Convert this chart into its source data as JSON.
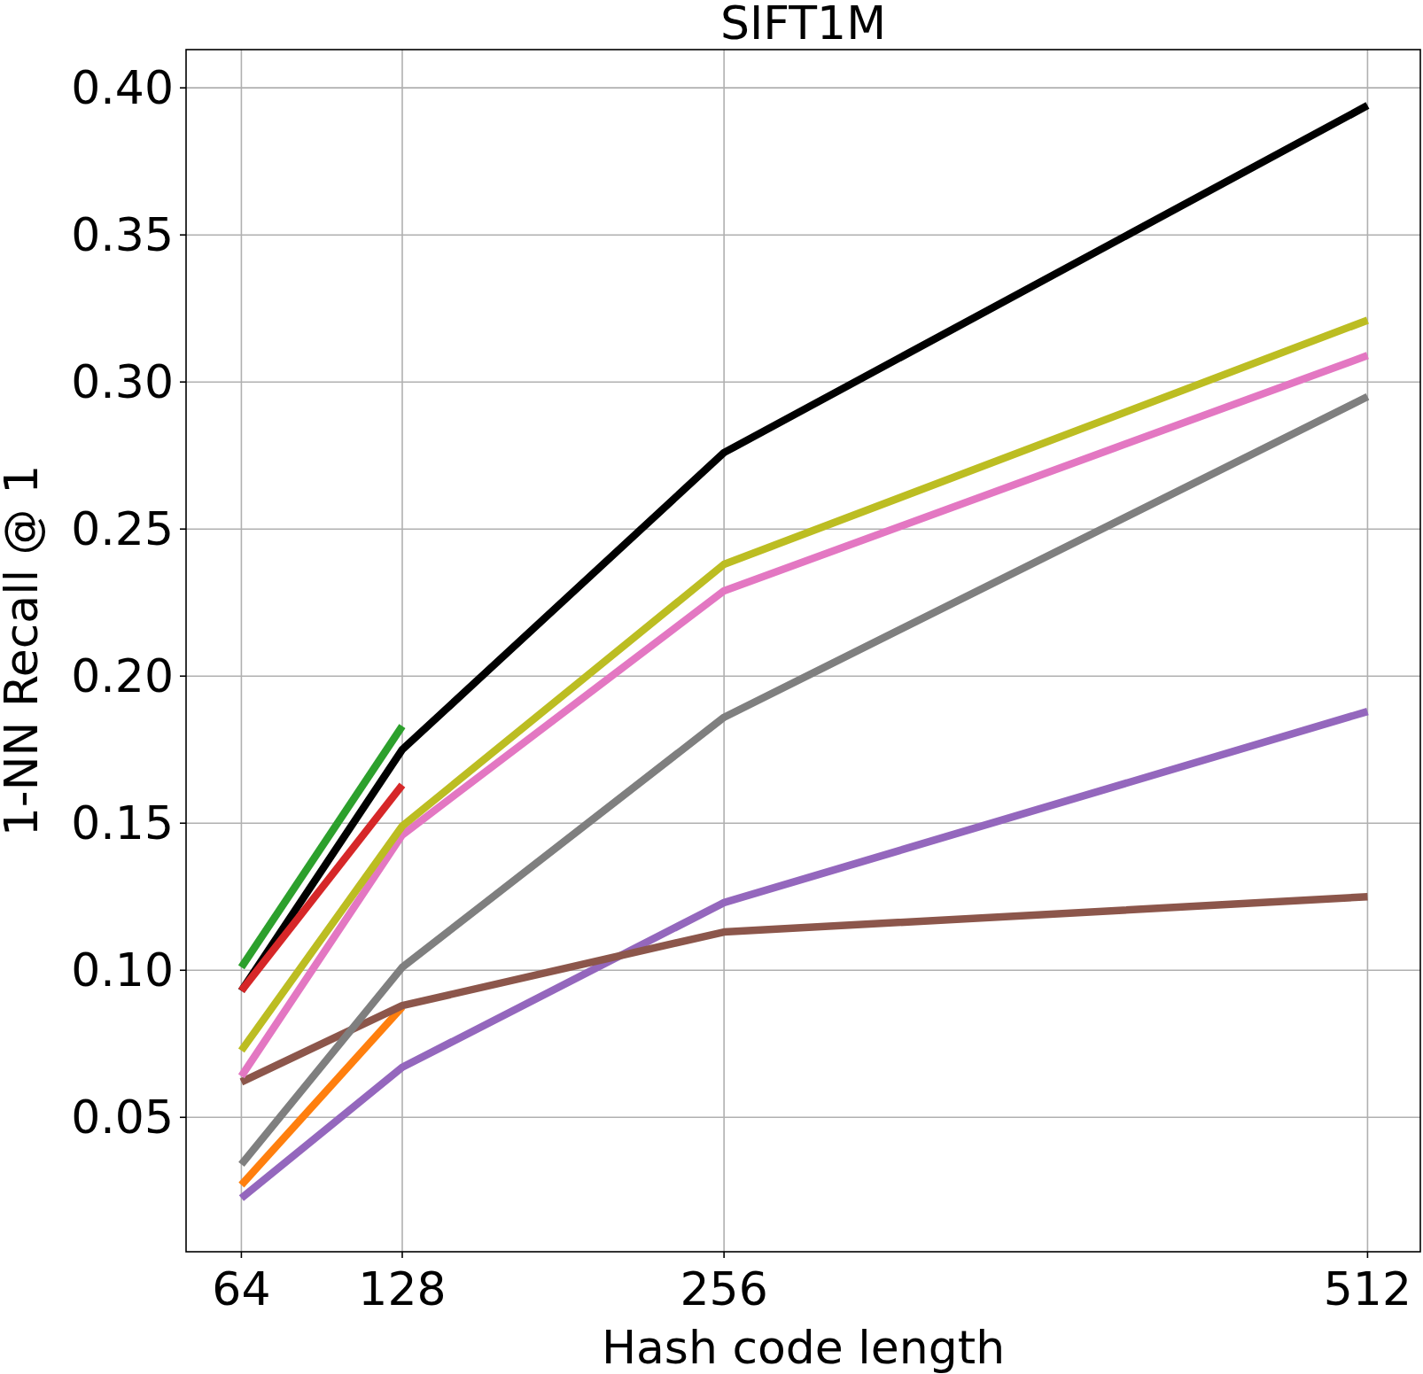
{
  "chart_data": {
    "type": "line",
    "title": "SIFT1M",
    "xlabel": "Hash code length",
    "ylabel": "1-NN Recall @ 1",
    "x": [
      64,
      128,
      256,
      512
    ],
    "xlim": [
      42,
      533
    ],
    "xticks": [
      64,
      128,
      256,
      512
    ],
    "ylim": [
      0.0043,
      0.413
    ],
    "yticks": [
      {
        "value": 0.05,
        "label": "0.05"
      },
      {
        "value": 0.1,
        "label": "0.10"
      },
      {
        "value": 0.15,
        "label": "0.15"
      },
      {
        "value": 0.2,
        "label": "0.20"
      },
      {
        "value": 0.25,
        "label": "0.25"
      },
      {
        "value": 0.3,
        "label": "0.30"
      },
      {
        "value": 0.35,
        "label": "0.35"
      },
      {
        "value": 0.4,
        "label": "0.40"
      }
    ],
    "grid": true,
    "marker": "none",
    "line_style": "solid",
    "series": [
      {
        "color": "#000000",
        "values": [
          0.093,
          0.175,
          0.276,
          0.394
        ]
      },
      {
        "color": "#2ca02c",
        "values": [
          0.101,
          0.183,
          null,
          null
        ]
      },
      {
        "color": "#d62728",
        "values": [
          0.093,
          0.163,
          null,
          null
        ]
      },
      {
        "color": "#ff7f0e",
        "values": [
          0.027,
          0.0875,
          null,
          null
        ]
      },
      {
        "color": "#9467bd",
        "values": [
          0.0225,
          0.067,
          0.123,
          0.188
        ]
      },
      {
        "color": "#8c564b",
        "values": [
          0.062,
          0.088,
          0.113,
          0.125
        ]
      },
      {
        "color": "#7f7f7f",
        "values": [
          0.034,
          0.101,
          0.186,
          0.295
        ]
      },
      {
        "color": "#e377c2",
        "values": [
          0.064,
          0.146,
          0.229,
          0.309
        ]
      },
      {
        "color": "#bcbd22",
        "values": [
          0.0727,
          0.149,
          0.238,
          0.321
        ]
      }
    ]
  }
}
